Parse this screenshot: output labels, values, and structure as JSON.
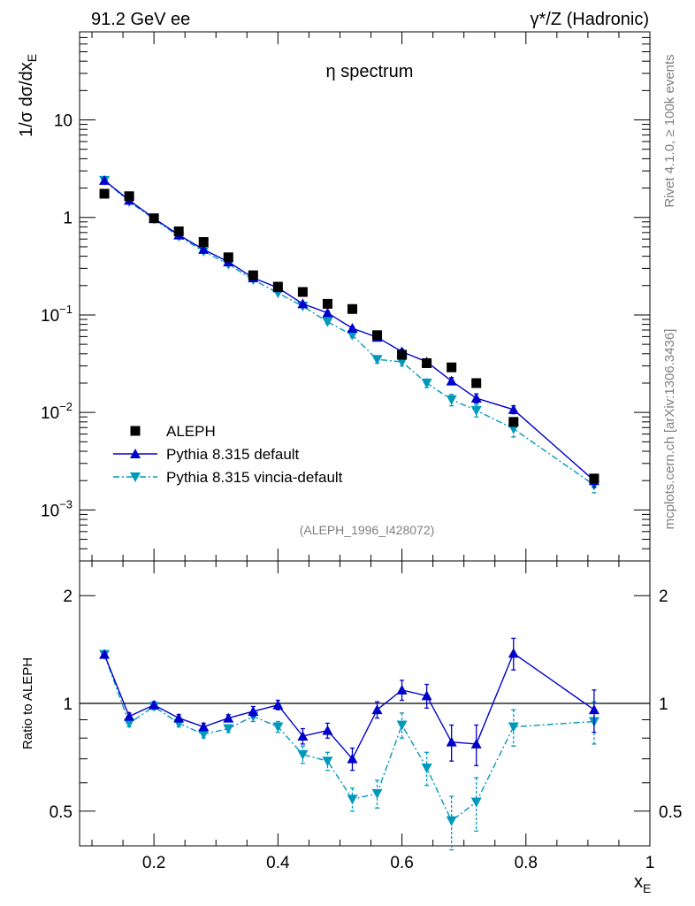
{
  "header": {
    "energy_label": "91.2 GeV ee",
    "process_label": "γ*/Z (Hadronic)",
    "rivet_label": "Rivet 4.1.0, ≥ 100k events",
    "mcplots_label": "mcplots.cern.ch [arXiv:1306.3436]"
  },
  "colors": {
    "aleph": "#000000",
    "pythia_default": "#0000cc",
    "vincia_default": "#0099bb"
  },
  "chart_data": [
    {
      "type": "scatter",
      "title": "η spectrum",
      "analysis_label": "(ALEPH_1996_I428072)",
      "xlabel": "x",
      "xlabel_sub": "E",
      "ylabel": "1/σ  dσ/dx",
      "ylabel_sub": "E",
      "yscale": "log",
      "xlim": [
        0.08,
        1.0
      ],
      "ylim": [
        0.0003,
        80
      ],
      "y_ticks": [
        {
          "value": 0.001,
          "base": "10",
          "exp": "−3"
        },
        {
          "value": 0.01,
          "base": "10",
          "exp": "−2"
        },
        {
          "value": 0.1,
          "base": "10",
          "exp": "−1"
        },
        {
          "value": 1,
          "base": "1",
          "exp": ""
        },
        {
          "value": 10,
          "base": "10",
          "exp": ""
        }
      ],
      "legend_position": "bottom-left",
      "series": [
        {
          "name": "ALEPH",
          "style": "marker-square",
          "x": [
            0.12,
            0.16,
            0.2,
            0.24,
            0.28,
            0.32,
            0.36,
            0.4,
            0.44,
            0.48,
            0.52,
            0.56,
            0.6,
            0.64,
            0.68,
            0.72,
            0.78,
            0.91
          ],
          "y": [
            1.75,
            1.65,
            0.98,
            0.72,
            0.56,
            0.39,
            0.255,
            0.195,
            0.172,
            0.13,
            0.115,
            0.062,
            0.039,
            0.032,
            0.029,
            0.02,
            0.008,
            0.0021
          ]
        },
        {
          "name": "Pythia 8.315 default",
          "style": "line-triangle-up",
          "x": [
            0.12,
            0.16,
            0.2,
            0.24,
            0.28,
            0.32,
            0.36,
            0.4,
            0.44,
            0.48,
            0.52,
            0.56,
            0.6,
            0.64,
            0.68,
            0.72,
            0.78,
            0.91
          ],
          "y": [
            2.4,
            1.5,
            0.98,
            0.66,
            0.47,
            0.35,
            0.24,
            0.19,
            0.13,
            0.105,
            0.073,
            0.059,
            0.042,
            0.033,
            0.021,
            0.014,
            0.0107,
            0.002
          ],
          "err": [
            0.04,
            0.03,
            0.02,
            0.013,
            0.01,
            0.008,
            0.006,
            0.005,
            0.004,
            0.004,
            0.003,
            0.003,
            0.0025,
            0.002,
            0.0018,
            0.0015,
            0.001,
            0.0003
          ]
        },
        {
          "name": "Pythia 8.315 vincia-default",
          "style": "dashdot-triangle-down",
          "x": [
            0.12,
            0.16,
            0.2,
            0.24,
            0.28,
            0.32,
            0.36,
            0.4,
            0.44,
            0.48,
            0.52,
            0.56,
            0.6,
            0.64,
            0.68,
            0.72,
            0.78,
            0.91
          ],
          "y": [
            2.4,
            1.45,
            0.96,
            0.64,
            0.45,
            0.33,
            0.23,
            0.168,
            0.123,
            0.085,
            0.062,
            0.035,
            0.033,
            0.02,
            0.0135,
            0.0105,
            0.0068,
            0.0018
          ],
          "err": [
            0.04,
            0.03,
            0.02,
            0.013,
            0.01,
            0.008,
            0.006,
            0.005,
            0.004,
            0.004,
            0.003,
            0.003,
            0.003,
            0.002,
            0.0018,
            0.0015,
            0.0012,
            0.0003
          ]
        }
      ]
    },
    {
      "type": "scatter",
      "title": "",
      "ylabel": "Ratio to ALEPH",
      "yscale": "log",
      "xlim": [
        0.08,
        1.0
      ],
      "ylim": [
        0.4,
        2.5
      ],
      "x_ticks": [
        0.2,
        0.4,
        0.6,
        0.8,
        1
      ],
      "x_tick_labels": [
        "0.2",
        "0.4",
        "0.6",
        "0.8",
        "1"
      ],
      "y_ticks": [
        0.5,
        1,
        2
      ],
      "y_tick_labels": [
        "0.5",
        "1",
        "2"
      ],
      "reference_line": 1,
      "series": [
        {
          "name": "Pythia 8.315 default",
          "style": "line-triangle-up",
          "x": [
            0.12,
            0.16,
            0.2,
            0.24,
            0.28,
            0.32,
            0.36,
            0.4,
            0.44,
            0.48,
            0.52,
            0.56,
            0.6,
            0.64,
            0.68,
            0.72,
            0.78,
            0.91
          ],
          "y": [
            1.37,
            0.92,
            0.99,
            0.91,
            0.86,
            0.91,
            0.95,
            0.99,
            0.81,
            0.84,
            0.7,
            0.96,
            1.09,
            1.05,
            0.78,
            0.77,
            1.38,
            0.96
          ],
          "err": [
            0.02,
            0.02,
            0.02,
            0.02,
            0.02,
            0.02,
            0.03,
            0.03,
            0.04,
            0.04,
            0.05,
            0.05,
            0.07,
            0.08,
            0.09,
            0.1,
            0.14,
            0.13
          ]
        },
        {
          "name": "Pythia 8.315 vincia-default",
          "style": "dashdot-triangle-down",
          "x": [
            0.12,
            0.16,
            0.2,
            0.24,
            0.28,
            0.32,
            0.36,
            0.4,
            0.44,
            0.48,
            0.52,
            0.56,
            0.6,
            0.64,
            0.68,
            0.72,
            0.78,
            0.91
          ],
          "y": [
            1.37,
            0.88,
            0.98,
            0.88,
            0.82,
            0.85,
            0.92,
            0.86,
            0.72,
            0.69,
            0.54,
            0.56,
            0.87,
            0.66,
            0.47,
            0.53,
            0.86,
            0.89
          ],
          "err": [
            0.02,
            0.02,
            0.02,
            0.02,
            0.02,
            0.02,
            0.03,
            0.03,
            0.04,
            0.04,
            0.04,
            0.05,
            0.07,
            0.07,
            0.08,
            0.09,
            0.1,
            0.12
          ]
        }
      ]
    }
  ]
}
